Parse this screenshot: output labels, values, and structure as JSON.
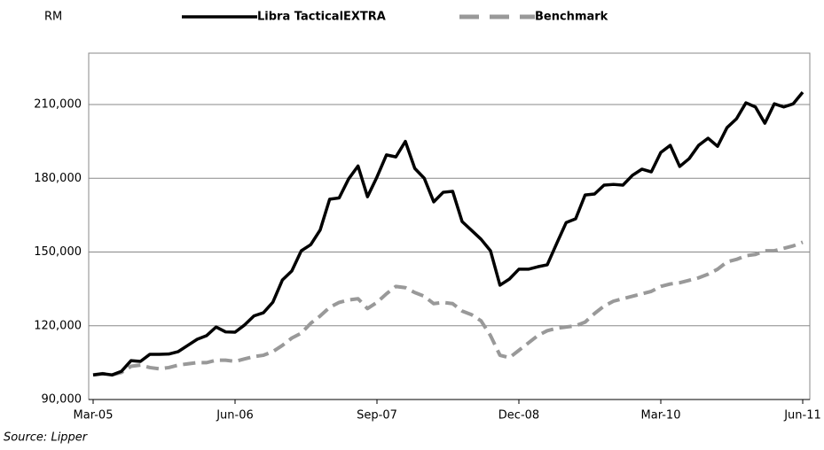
{
  "chart_data": {
    "type": "line",
    "y_label": "RM",
    "source": "Source: Lipper",
    "categories": [
      "Mar-05",
      null,
      null,
      null,
      null,
      null,
      null,
      null,
      null,
      null,
      null,
      null,
      null,
      null,
      null,
      "Jun-06",
      null,
      null,
      null,
      null,
      null,
      null,
      null,
      null,
      null,
      null,
      null,
      null,
      null,
      null,
      "Sep-07",
      null,
      null,
      null,
      null,
      null,
      null,
      null,
      null,
      null,
      null,
      null,
      null,
      null,
      null,
      "Dec-08",
      null,
      null,
      null,
      null,
      null,
      null,
      null,
      null,
      null,
      null,
      null,
      null,
      null,
      null,
      "Mar-10",
      null,
      null,
      null,
      null,
      null,
      null,
      null,
      null,
      null,
      null,
      null,
      null,
      null,
      null,
      "Jun-11"
    ],
    "series": [
      {
        "name": "Libra TacticalEXTRA",
        "color": "#000000",
        "dashed": false,
        "values": [
          100000,
          100500,
          100000,
          101500,
          105800,
          105500,
          108400,
          108400,
          108500,
          109500,
          112000,
          114500,
          116000,
          119500,
          117500,
          117400,
          120300,
          124000,
          125300,
          129600,
          138600,
          142300,
          150500,
          153000,
          159000,
          171500,
          172000,
          179700,
          185000,
          172500,
          180500,
          189500,
          188700,
          195000,
          184000,
          180000,
          170400,
          174300,
          174700,
          162400,
          158800,
          155200,
          150500,
          136500,
          139000,
          143000,
          143000,
          144000,
          144800,
          153500,
          162000,
          163500,
          173200,
          173600,
          177200,
          177500,
          177200,
          181200,
          183700,
          182600,
          190500,
          193400,
          184800,
          188000,
          193400,
          196300,
          193000,
          200600,
          204200,
          210700,
          209000,
          202400,
          210300,
          209000,
          210300,
          215000
        ]
      },
      {
        "name": "Benchmark",
        "color": "#999999",
        "dashed": true,
        "values": [
          100000,
          100500,
          100000,
          101000,
          103500,
          104000,
          103000,
          102500,
          103000,
          104000,
          104500,
          105000,
          105000,
          106000,
          106000,
          105500,
          106500,
          107500,
          108000,
          109500,
          112000,
          115000,
          117000,
          121000,
          124000,
          127500,
          129500,
          130500,
          131000,
          127000,
          129500,
          133000,
          136000,
          135500,
          133500,
          132000,
          129000,
          129500,
          129000,
          126000,
          124500,
          122000,
          116000,
          108000,
          107000,
          110000,
          113000,
          116000,
          118000,
          119000,
          119500,
          120000,
          121500,
          125000,
          128000,
          130000,
          131000,
          132000,
          133000,
          134000,
          136000,
          137000,
          137500,
          138500,
          139500,
          141000,
          143000,
          146000,
          147000,
          148500,
          149000,
          150500,
          150500,
          151500,
          152500,
          154000
        ]
      }
    ],
    "ylim": [
      90000,
      240000
    ],
    "yticks": [
      {
        "value": 90000,
        "label": "90,000"
      },
      {
        "value": 120000,
        "label": "120,000"
      },
      {
        "value": 150000,
        "label": "150,000"
      },
      {
        "value": 180000,
        "label": "180,000"
      },
      {
        "value": 210000,
        "label": "210,000"
      }
    ],
    "grid": true
  }
}
